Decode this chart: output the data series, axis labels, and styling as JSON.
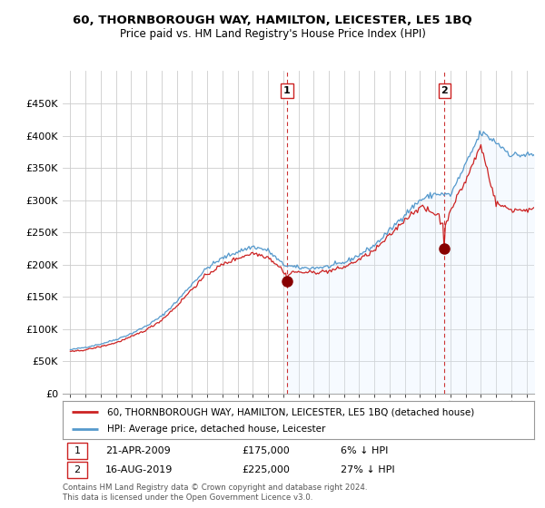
{
  "title": "60, THORNBOROUGH WAY, HAMILTON, LEICESTER, LE5 1BQ",
  "subtitle": "Price paid vs. HM Land Registry's House Price Index (HPI)",
  "hpi_label": "HPI: Average price, detached house, Leicester",
  "property_label": "60, THORNBOROUGH WAY, HAMILTON, LEICESTER, LE5 1BQ (detached house)",
  "copyright": "Contains HM Land Registry data © Crown copyright and database right 2024.\nThis data is licensed under the Open Government Licence v3.0.",
  "sale1_year": 2009.25,
  "sale1_price": 175000,
  "sale2_year": 2019.6,
  "sale2_price": 225000,
  "marker1_label": "1",
  "marker2_label": "2",
  "ylim": [
    0,
    500000
  ],
  "yticks": [
    0,
    50000,
    100000,
    150000,
    200000,
    250000,
    300000,
    350000,
    400000,
    450000
  ],
  "ytick_labels": [
    "£0",
    "£50K",
    "£100K",
    "£150K",
    "£200K",
    "£250K",
    "£300K",
    "£350K",
    "£400K",
    "£450K"
  ],
  "hpi_color": "#5599cc",
  "property_color": "#cc2222",
  "vline_color": "#cc3333",
  "background_color": "#ffffff",
  "fill_color": "#ddeeff",
  "grid_color": "#cccccc",
  "xlim_start": 1994.5,
  "xlim_end": 2025.5
}
